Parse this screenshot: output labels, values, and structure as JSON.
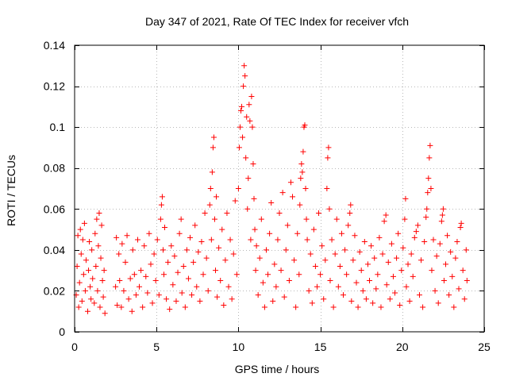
{
  "chart_data": {
    "type": "scatter",
    "title": "Day 347 of 2021, Rate Of TEC Index for receiver vfch",
    "xlabel": "GPS time / hours",
    "ylabel": "ROTI / TECUs",
    "xlim": [
      0,
      25
    ],
    "ylim": [
      0,
      0.14
    ],
    "x_ticks": [
      0,
      5,
      10,
      15,
      20,
      25
    ],
    "y_ticks": [
      0,
      0.02,
      0.04,
      0.06,
      0.08,
      0.1,
      0.12,
      0.14
    ],
    "x_tick_labels": [
      "0",
      "5",
      "10",
      "15",
      "20",
      "25"
    ],
    "y_tick_labels": [
      "0",
      "0.02",
      "0.04",
      "0.06",
      "0.08",
      "0.1",
      "0.12",
      "0.14"
    ],
    "grid": true,
    "marker": "+",
    "color": "#ff0000",
    "series": [
      {
        "name": "ROTI",
        "points": [
          [
            0.1,
            0.018
          ],
          [
            0.15,
            0.032
          ],
          [
            0.2,
            0.047
          ],
          [
            0.25,
            0.012
          ],
          [
            0.3,
            0.024
          ],
          [
            0.35,
            0.05
          ],
          [
            0.4,
            0.038
          ],
          [
            0.45,
            0.015
          ],
          [
            0.5,
            0.045
          ],
          [
            0.55,
            0.028
          ],
          [
            0.6,
            0.053
          ],
          [
            0.65,
            0.02
          ],
          [
            0.7,
            0.035
          ],
          [
            0.8,
            0.01
          ],
          [
            0.85,
            0.03
          ],
          [
            0.9,
            0.044
          ],
          [
            0.95,
            0.022
          ],
          [
            1.0,
            0.016
          ],
          [
            1.05,
            0.04
          ],
          [
            1.1,
            0.026
          ],
          [
            1.2,
            0.014
          ],
          [
            1.25,
            0.048
          ],
          [
            1.3,
            0.032
          ],
          [
            1.35,
            0.055
          ],
          [
            1.4,
            0.02
          ],
          [
            1.45,
            0.042
          ],
          [
            1.5,
            0.058
          ],
          [
            1.55,
            0.012
          ],
          [
            1.6,
            0.036
          ],
          [
            1.65,
            0.052
          ],
          [
            1.7,
            0.025
          ],
          [
            1.75,
            0.017
          ],
          [
            1.8,
            0.03
          ],
          [
            1.85,
            0.009
          ],
          [
            2.5,
            0.022
          ],
          [
            2.55,
            0.046
          ],
          [
            2.6,
            0.013
          ],
          [
            2.7,
            0.038
          ],
          [
            2.75,
            0.025
          ],
          [
            2.85,
            0.012
          ],
          [
            2.9,
            0.043
          ],
          [
            3.0,
            0.02
          ],
          [
            3.1,
            0.034
          ],
          [
            3.2,
            0.047
          ],
          [
            3.3,
            0.016
          ],
          [
            3.4,
            0.026
          ],
          [
            3.5,
            0.01
          ],
          [
            3.55,
            0.04
          ],
          [
            3.65,
            0.028
          ],
          [
            3.75,
            0.018
          ],
          [
            3.85,
            0.045
          ],
          [
            3.95,
            0.022
          ],
          [
            4.05,
            0.03
          ],
          [
            4.15,
            0.012
          ],
          [
            4.25,
            0.042
          ],
          [
            4.35,
            0.027
          ],
          [
            4.45,
            0.019
          ],
          [
            4.55,
            0.048
          ],
          [
            4.65,
            0.033
          ],
          [
            4.75,
            0.014
          ],
          [
            4.85,
            0.038
          ],
          [
            4.95,
            0.025
          ],
          [
            5.05,
            0.045
          ],
          [
            5.15,
            0.018
          ],
          [
            5.25,
            0.055
          ],
          [
            5.3,
            0.062
          ],
          [
            5.35,
            0.066
          ],
          [
            5.4,
            0.04
          ],
          [
            5.45,
            0.028
          ],
          [
            5.5,
            0.051
          ],
          [
            5.6,
            0.016
          ],
          [
            5.7,
            0.034
          ],
          [
            5.8,
            0.011
          ],
          [
            5.9,
            0.042
          ],
          [
            6.0,
            0.023
          ],
          [
            6.1,
            0.037
          ],
          [
            6.2,
            0.015
          ],
          [
            6.3,
            0.029
          ],
          [
            6.4,
            0.048
          ],
          [
            6.5,
            0.055
          ],
          [
            6.55,
            0.019
          ],
          [
            6.65,
            0.032
          ],
          [
            6.75,
            0.012
          ],
          [
            6.85,
            0.04
          ],
          [
            6.95,
            0.026
          ],
          [
            7.05,
            0.046
          ],
          [
            7.15,
            0.018
          ],
          [
            7.25,
            0.034
          ],
          [
            7.35,
            0.052
          ],
          [
            7.45,
            0.022
          ],
          [
            7.55,
            0.039
          ],
          [
            7.65,
            0.015
          ],
          [
            7.75,
            0.044
          ],
          [
            7.85,
            0.028
          ],
          [
            7.95,
            0.058
          ],
          [
            8.05,
            0.036
          ],
          [
            8.15,
            0.02
          ],
          [
            8.25,
            0.062
          ],
          [
            8.3,
            0.07
          ],
          [
            8.35,
            0.045
          ],
          [
            8.4,
            0.078
          ],
          [
            8.45,
            0.09
          ],
          [
            8.5,
            0.095
          ],
          [
            8.55,
            0.055
          ],
          [
            8.6,
            0.03
          ],
          [
            8.65,
            0.066
          ],
          [
            8.7,
            0.017
          ],
          [
            8.8,
            0.041
          ],
          [
            8.9,
            0.025
          ],
          [
            9.0,
            0.05
          ],
          [
            9.1,
            0.013
          ],
          [
            9.2,
            0.035
          ],
          [
            9.3,
            0.058
          ],
          [
            9.4,
            0.022
          ],
          [
            9.5,
            0.045
          ],
          [
            9.6,
            0.016
          ],
          [
            9.7,
            0.038
          ],
          [
            9.8,
            0.064
          ],
          [
            9.9,
            0.028
          ],
          [
            10.0,
            0.07
          ],
          [
            10.05,
            0.09
          ],
          [
            10.1,
            0.1
          ],
          [
            10.15,
            0.108
          ],
          [
            10.2,
            0.11
          ],
          [
            10.25,
            0.095
          ],
          [
            10.3,
            0.12
          ],
          [
            10.35,
            0.13
          ],
          [
            10.4,
            0.125
          ],
          [
            10.45,
            0.085
          ],
          [
            10.5,
            0.105
          ],
          [
            10.55,
            0.06
          ],
          [
            10.6,
            0.075
          ],
          [
            10.65,
            0.111
          ],
          [
            10.7,
            0.103
          ],
          [
            10.75,
            0.045
          ],
          [
            10.8,
            0.115
          ],
          [
            10.85,
            0.1
          ],
          [
            10.9,
            0.082
          ],
          [
            10.95,
            0.065
          ],
          [
            11.0,
            0.05
          ],
          [
            11.05,
            0.03
          ],
          [
            11.1,
            0.042
          ],
          [
            11.2,
            0.018
          ],
          [
            11.3,
            0.036
          ],
          [
            11.4,
            0.055
          ],
          [
            11.5,
            0.024
          ],
          [
            11.6,
            0.012
          ],
          [
            11.7,
            0.04
          ],
          [
            11.8,
            0.028
          ],
          [
            11.9,
            0.048
          ],
          [
            12.0,
            0.063
          ],
          [
            12.1,
            0.015
          ],
          [
            12.2,
            0.033
          ],
          [
            12.3,
            0.022
          ],
          [
            12.4,
            0.045
          ],
          [
            12.5,
            0.058
          ],
          [
            12.6,
            0.03
          ],
          [
            12.7,
            0.068
          ],
          [
            12.8,
            0.017
          ],
          [
            12.9,
            0.04
          ],
          [
            13.0,
            0.052
          ],
          [
            13.1,
            0.025
          ],
          [
            13.2,
            0.073
          ],
          [
            13.3,
            0.066
          ],
          [
            13.4,
            0.035
          ],
          [
            13.5,
            0.012
          ],
          [
            13.6,
            0.048
          ],
          [
            13.7,
            0.028
          ],
          [
            13.75,
            0.062
          ],
          [
            13.8,
            0.075
          ],
          [
            13.85,
            0.082
          ],
          [
            13.9,
            0.078
          ],
          [
            13.95,
            0.088
          ],
          [
            14.0,
            0.1
          ],
          [
            14.05,
            0.101
          ],
          [
            14.1,
            0.07
          ],
          [
            14.15,
            0.055
          ],
          [
            14.2,
            0.045
          ],
          [
            14.3,
            0.02
          ],
          [
            14.4,
            0.038
          ],
          [
            14.5,
            0.014
          ],
          [
            14.6,
            0.05
          ],
          [
            14.7,
            0.032
          ],
          [
            14.8,
            0.022
          ],
          [
            14.9,
            0.058
          ],
          [
            15.0,
            0.028
          ],
          [
            15.1,
            0.042
          ],
          [
            15.2,
            0.016
          ],
          [
            15.3,
            0.035
          ],
          [
            15.4,
            0.07
          ],
          [
            15.45,
            0.085
          ],
          [
            15.5,
            0.09
          ],
          [
            15.55,
            0.06
          ],
          [
            15.6,
            0.025
          ],
          [
            15.7,
            0.045
          ],
          [
            15.8,
            0.012
          ],
          [
            15.9,
            0.038
          ],
          [
            16.0,
            0.055
          ],
          [
            16.1,
            0.022
          ],
          [
            16.2,
            0.032
          ],
          [
            16.3,
            0.048
          ],
          [
            16.4,
            0.018
          ],
          [
            16.5,
            0.04
          ],
          [
            16.6,
            0.028
          ],
          [
            16.7,
            0.052
          ],
          [
            16.8,
            0.058
          ],
          [
            16.85,
            0.062
          ],
          [
            16.9,
            0.015
          ],
          [
            17.0,
            0.035
          ],
          [
            17.1,
            0.047
          ],
          [
            17.2,
            0.024
          ],
          [
            17.3,
            0.012
          ],
          [
            17.4,
            0.039
          ],
          [
            17.5,
            0.03
          ],
          [
            17.6,
            0.02
          ],
          [
            17.7,
            0.044
          ],
          [
            17.8,
            0.016
          ],
          [
            17.9,
            0.033
          ],
          [
            18.0,
            0.025
          ],
          [
            18.1,
            0.042
          ],
          [
            18.2,
            0.014
          ],
          [
            18.3,
            0.036
          ],
          [
            18.4,
            0.021
          ],
          [
            18.5,
            0.028
          ],
          [
            18.6,
            0.046
          ],
          [
            18.7,
            0.012
          ],
          [
            18.8,
            0.038
          ],
          [
            18.9,
            0.054
          ],
          [
            19.0,
            0.057
          ],
          [
            19.05,
            0.023
          ],
          [
            19.15,
            0.034
          ],
          [
            19.25,
            0.016
          ],
          [
            19.35,
            0.043
          ],
          [
            19.45,
            0.027
          ],
          [
            19.55,
            0.019
          ],
          [
            19.65,
            0.036
          ],
          [
            19.75,
            0.048
          ],
          [
            19.85,
            0.013
          ],
          [
            19.95,
            0.03
          ],
          [
            20.05,
            0.041
          ],
          [
            20.15,
            0.055
          ],
          [
            20.2,
            0.065
          ],
          [
            20.25,
            0.022
          ],
          [
            20.35,
            0.033
          ],
          [
            20.45,
            0.015
          ],
          [
            20.55,
            0.038
          ],
          [
            20.65,
            0.027
          ],
          [
            20.75,
            0.046
          ],
          [
            20.85,
            0.049
          ],
          [
            20.95,
            0.052
          ],
          [
            21.05,
            0.018
          ],
          [
            21.15,
            0.035
          ],
          [
            21.25,
            0.012
          ],
          [
            21.35,
            0.044
          ],
          [
            21.45,
            0.056
          ],
          [
            21.5,
            0.06
          ],
          [
            21.55,
            0.068
          ],
          [
            21.6,
            0.075
          ],
          [
            21.65,
            0.085
          ],
          [
            21.7,
            0.091
          ],
          [
            21.75,
            0.07
          ],
          [
            21.8,
            0.03
          ],
          [
            21.9,
            0.045
          ],
          [
            22.0,
            0.02
          ],
          [
            22.1,
            0.037
          ],
          [
            22.2,
            0.014
          ],
          [
            22.3,
            0.043
          ],
          [
            22.4,
            0.054
          ],
          [
            22.45,
            0.057
          ],
          [
            22.5,
            0.06
          ],
          [
            22.55,
            0.025
          ],
          [
            22.65,
            0.033
          ],
          [
            22.75,
            0.047
          ],
          [
            22.85,
            0.018
          ],
          [
            22.95,
            0.039
          ],
          [
            23.05,
            0.027
          ],
          [
            23.15,
            0.012
          ],
          [
            23.25,
            0.036
          ],
          [
            23.35,
            0.044
          ],
          [
            23.45,
            0.021
          ],
          [
            23.55,
            0.051
          ],
          [
            23.6,
            0.053
          ],
          [
            23.7,
            0.03
          ],
          [
            23.8,
            0.016
          ],
          [
            23.9,
            0.04
          ],
          [
            23.95,
            0.025
          ]
        ]
      }
    ]
  }
}
